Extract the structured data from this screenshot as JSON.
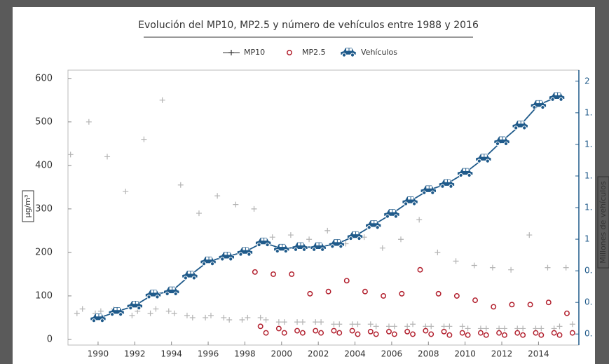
{
  "chart_data": {
    "type": "scatter",
    "title": "Evolución del MP10, MP2.5 y número de vehículos entre 1988 y 2016",
    "y_label": "µg/m³",
    "y2_label": "Millones de vehículos",
    "xlim": [
      1988.36,
      2016.2
    ],
    "xticks": [
      1990,
      1992,
      1994,
      1996,
      1998,
      2000,
      2002,
      2004,
      2006,
      2008,
      2010,
      2012,
      2014
    ],
    "ylim": [
      -13,
      619
    ],
    "yticks": [
      0,
      100,
      200,
      300,
      400,
      500,
      600
    ],
    "y2lim": [
      0.33,
      2.07
    ],
    "y2ticks": [
      2,
      {
        "value": 1.8,
        "label": "1."
      },
      {
        "value": 1.6,
        "label": "1."
      },
      {
        "value": 1.4,
        "label": "1."
      },
      {
        "value": 1.2,
        "label": "1."
      },
      1,
      {
        "value": 0.8,
        "label": "0."
      },
      {
        "value": 0.6,
        "label": "0."
      },
      {
        "value": 0.4,
        "label": "0."
      }
    ],
    "series": [
      {
        "name": "MP10",
        "color": "#b4b4b4",
        "marker": "plus",
        "x": [
          1988.5,
          1988.85,
          1989.15,
          1989.5,
          1989.85,
          1990.15,
          1990.5,
          1990.85,
          1991.15,
          1991.5,
          1991.85,
          1992.15,
          1992.5,
          1992.85,
          1993.15,
          1993.5,
          1993.85,
          1994.15,
          1994.5,
          1994.85,
          1995.15,
          1995.5,
          1995.85,
          1996.15,
          1996.5,
          1996.85,
          1997.15,
          1997.5,
          1997.85,
          1998.15,
          1998.5,
          1998.85,
          1999.15,
          1999.5,
          1999.85,
          2000.15,
          2000.5,
          2000.85,
          2001.15,
          2001.5,
          2001.85,
          2002.15,
          2002.5,
          2002.85,
          2003.15,
          2003.5,
          2003.85,
          2004.15,
          2004.5,
          2004.85,
          2005.15,
          2005.5,
          2005.85,
          2006.15,
          2006.5,
          2006.85,
          2007.15,
          2007.5,
          2007.85,
          2008.15,
          2008.5,
          2008.85,
          2009.15,
          2009.5,
          2009.85,
          2010.15,
          2010.5,
          2010.85,
          2011.15,
          2011.5,
          2011.85,
          2012.15,
          2012.5,
          2012.85,
          2013.15,
          2013.5,
          2013.85,
          2014.15,
          2014.5,
          2014.85,
          2015.15,
          2015.5,
          2015.85
        ],
        "values": [
          425,
          60,
          70,
          500,
          60,
          65,
          420,
          70,
          60,
          340,
          55,
          65,
          460,
          60,
          70,
          550,
          65,
          60,
          355,
          55,
          50,
          290,
          50,
          55,
          330,
          50,
          45,
          310,
          45,
          50,
          300,
          50,
          45,
          235,
          40,
          40,
          240,
          40,
          40,
          230,
          40,
          40,
          250,
          35,
          35,
          220,
          35,
          35,
          235,
          35,
          30,
          210,
          30,
          30,
          230,
          30,
          35,
          275,
          30,
          30,
          200,
          30,
          30,
          180,
          30,
          25,
          170,
          25,
          25,
          165,
          25,
          25,
          160,
          25,
          25,
          240,
          25,
          25,
          165,
          25,
          30,
          165,
          35
        ]
      },
      {
        "name": "MP2.5",
        "color": "#b2202e",
        "marker": "circle",
        "x": [
          1998.55,
          1998.85,
          1999.15,
          1999.55,
          1999.85,
          2000.15,
          2000.55,
          2000.85,
          2001.15,
          2001.55,
          2001.85,
          2002.15,
          2002.55,
          2002.85,
          2003.15,
          2003.55,
          2003.85,
          2004.15,
          2004.55,
          2004.85,
          2005.15,
          2005.55,
          2005.85,
          2006.15,
          2006.55,
          2006.85,
          2007.15,
          2007.55,
          2007.85,
          2008.15,
          2008.55,
          2008.85,
          2009.15,
          2009.55,
          2009.85,
          2010.15,
          2010.55,
          2010.85,
          2011.15,
          2011.55,
          2011.85,
          2012.15,
          2012.55,
          2012.85,
          2013.15,
          2013.55,
          2013.85,
          2014.15,
          2014.55,
          2014.85,
          2015.15,
          2015.55,
          2015.85
        ],
        "values": [
          155,
          30,
          15,
          150,
          25,
          15,
          150,
          20,
          15,
          105,
          20,
          15,
          110,
          20,
          15,
          135,
          20,
          12,
          110,
          18,
          12,
          100,
          18,
          12,
          105,
          18,
          12,
          160,
          20,
          12,
          105,
          18,
          10,
          100,
          15,
          10,
          90,
          15,
          10,
          75,
          15,
          10,
          80,
          15,
          10,
          80,
          15,
          10,
          85,
          15,
          10,
          60,
          15
        ]
      },
      {
        "name": "Vehículos",
        "color": "#1f5a8a",
        "marker": "car",
        "axis": "y2",
        "line": true,
        "x": [
          1990,
          1991,
          1992,
          1993,
          1994,
          1995,
          1996,
          1997,
          1998,
          1999,
          2000,
          2001,
          2002,
          2003,
          2004,
          2005,
          2006,
          2007,
          2008,
          2009,
          2010,
          2011,
          2012,
          2013,
          2014,
          2015
        ],
        "values": [
          0.5,
          0.54,
          0.58,
          0.65,
          0.67,
          0.77,
          0.86,
          0.89,
          0.92,
          0.98,
          0.94,
          0.95,
          0.95,
          0.97,
          1.02,
          1.09,
          1.16,
          1.24,
          1.31,
          1.35,
          1.42,
          1.51,
          1.62,
          1.72,
          1.85,
          1.9
        ]
      }
    ]
  }
}
